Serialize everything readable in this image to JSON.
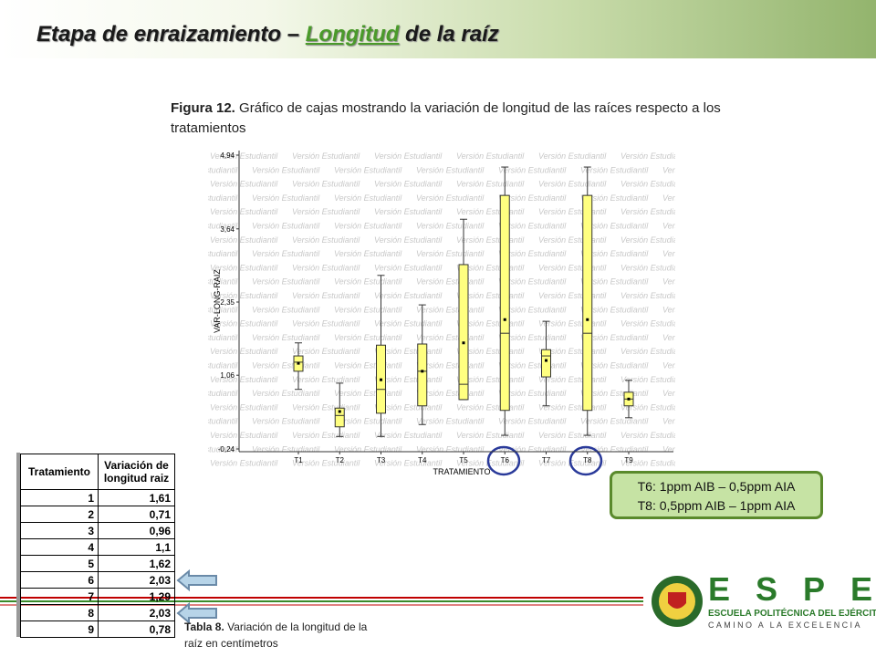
{
  "title_parts": [
    "Etapa de enraizamiento – ",
    "Longitud",
    " de la raíz"
  ],
  "figure_caption": {
    "label": "Figura 12.",
    "text": " Gráfico de cajas mostrando la variación de longitud de las raíces respecto a los tratamientos"
  },
  "chart_data": {
    "type": "box",
    "watermark": "Versión Estudiantil",
    "y_label": "VAR-LONG-RAIZ",
    "x_label": "TRATAMIENTO",
    "categories": [
      "T1",
      "T2",
      "T3",
      "T4",
      "T5",
      "T6",
      "T7",
      "T8",
      "T9"
    ],
    "color": "#ffff80",
    "whisker_low": [
      0.81,
      -0.02,
      -0.02,
      0.19,
      0.63,
      0.0,
      0.52,
      0.0,
      0.31
    ],
    "q1": [
      1.13,
      0.15,
      0.39,
      0.52,
      0.63,
      0.44,
      1.03,
      0.44,
      0.52
    ],
    "median": [
      1.29,
      0.35,
      0.81,
      1.13,
      0.9,
      1.8,
      1.4,
      1.8,
      0.64
    ],
    "q3": [
      1.4,
      0.48,
      1.59,
      1.61,
      3.01,
      4.23,
      1.51,
      4.23,
      0.76
    ],
    "whisker_high": [
      1.63,
      0.92,
      2.82,
      2.3,
      3.81,
      4.73,
      2.01,
      4.73,
      0.97
    ],
    "mean": [
      1.27,
      0.42,
      0.98,
      1.13,
      1.63,
      2.04,
      1.32,
      2.04,
      0.64
    ],
    "ylim": [
      -0.24,
      4.94
    ],
    "yticks": [
      {
        "value": -0.24,
        "label": "-0,24"
      },
      {
        "value": 1.06,
        "label": "1,06"
      },
      {
        "value": 2.35,
        "label": "2,35"
      },
      {
        "value": 3.64,
        "label": "3,64"
      },
      {
        "value": 4.94,
        "label": "4,94"
      }
    ]
  },
  "note_lines": [
    "T6: 1ppm AIB – 0,5ppm AIA",
    "T8: 0,5ppm AIB – 1ppm AIA"
  ],
  "table": {
    "header": [
      "Tratamiento",
      "Variación de longitud raiz"
    ],
    "rows": [
      [
        "1",
        "1,61"
      ],
      [
        "2",
        "0,71"
      ],
      [
        "3",
        "0,96"
      ],
      [
        "4",
        "1,1"
      ],
      [
        "5",
        "1,62"
      ],
      [
        "6",
        "2,03"
      ],
      [
        "7",
        "1,29"
      ],
      [
        "8",
        "2,03"
      ],
      [
        "9",
        "0,78"
      ]
    ]
  },
  "table_caption": {
    "label": "Tabla 8.",
    "text": " Variación de la longitud de la raíz en centímetros"
  },
  "logo": {
    "letters": "ESPE",
    "line1": "ESCUELA POLITÉCNICA DEL EJÉRCITO",
    "line2": "CAMINO A LA EXCELENCIA"
  }
}
